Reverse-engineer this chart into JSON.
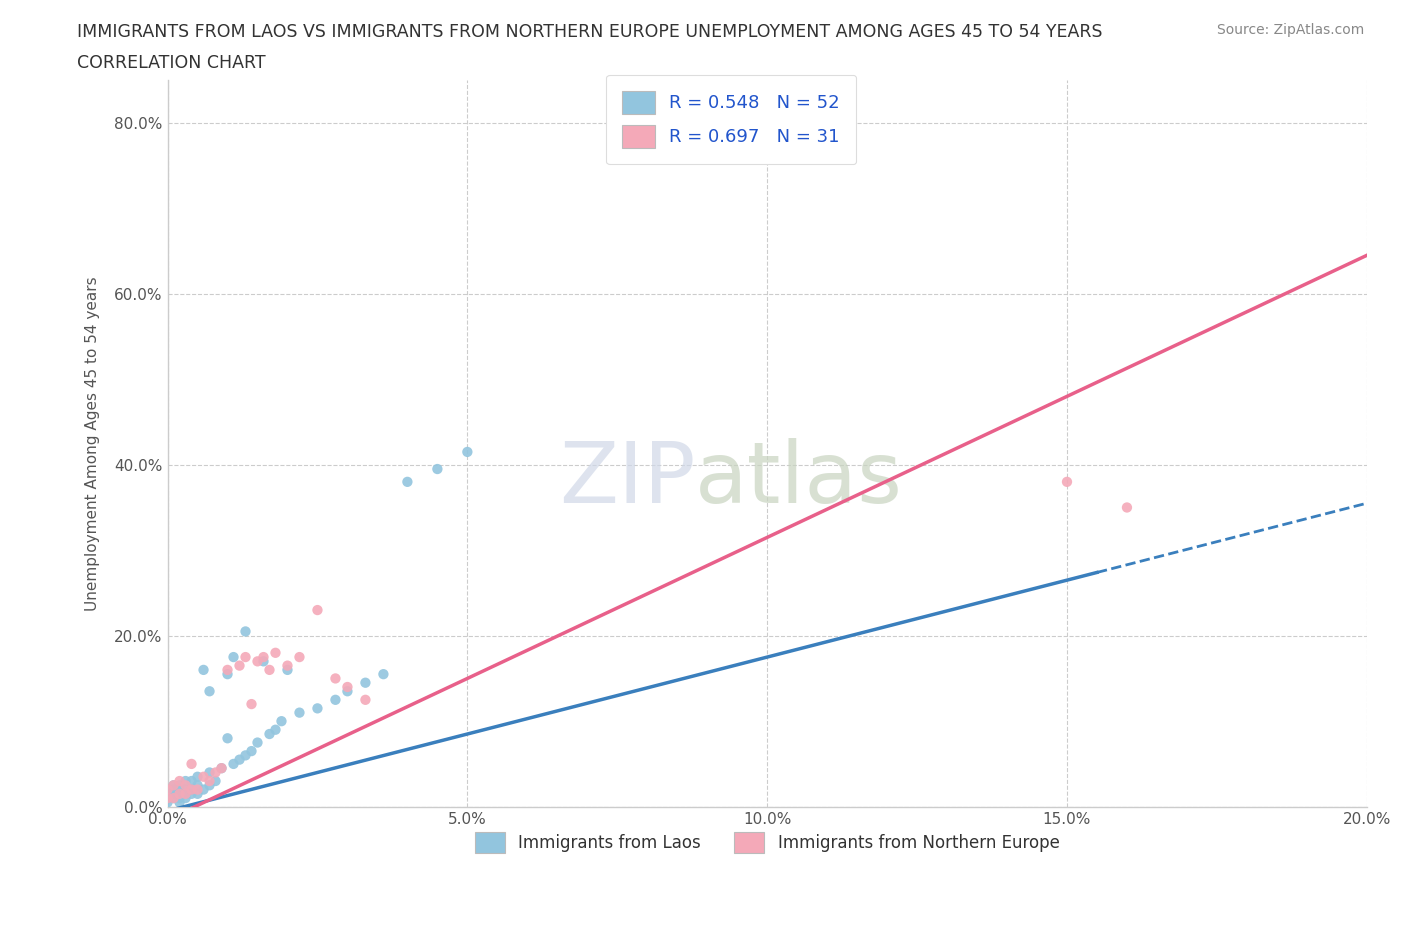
{
  "title_line1": "IMMIGRANTS FROM LAOS VS IMMIGRANTS FROM NORTHERN EUROPE UNEMPLOYMENT AMONG AGES 45 TO 54 YEARS",
  "title_line2": "CORRELATION CHART",
  "source_text": "Source: ZipAtlas.com",
  "ylabel": "Unemployment Among Ages 45 to 54 years",
  "legend_label1": "Immigrants from Laos",
  "legend_label2": "Immigrants from Northern Europe",
  "R1": 0.548,
  "N1": 52,
  "R2": 0.697,
  "N2": 31,
  "color1": "#92c5de",
  "color2": "#f4a9b8",
  "trendline1_color": "#3a7fbd",
  "trendline2_color": "#e8608a",
  "trendline1_dash_color": "#3a7fbd",
  "watermark": "ZIPatlas",
  "xlim": [
    0.0,
    0.2
  ],
  "ylim": [
    0.0,
    0.85
  ],
  "xticks": [
    0.0,
    0.05,
    0.1,
    0.15,
    0.2
  ],
  "yticks": [
    0.0,
    0.2,
    0.4,
    0.6,
    0.8
  ],
  "background_color": "#ffffff",
  "laos_x": [
    0.0,
    0.0,
    0.0,
    0.001,
    0.001,
    0.001,
    0.001,
    0.002,
    0.002,
    0.002,
    0.002,
    0.002,
    0.003,
    0.003,
    0.003,
    0.003,
    0.004,
    0.004,
    0.004,
    0.005,
    0.005,
    0.005,
    0.006,
    0.006,
    0.007,
    0.007,
    0.007,
    0.008,
    0.009,
    0.01,
    0.01,
    0.011,
    0.011,
    0.012,
    0.013,
    0.013,
    0.014,
    0.015,
    0.016,
    0.017,
    0.018,
    0.019,
    0.02,
    0.022,
    0.025,
    0.028,
    0.03,
    0.033,
    0.036,
    0.04,
    0.045,
    0.05
  ],
  "laos_y": [
    0.005,
    0.01,
    0.015,
    0.01,
    0.015,
    0.02,
    0.025,
    0.005,
    0.01,
    0.015,
    0.02,
    0.025,
    0.01,
    0.015,
    0.02,
    0.03,
    0.015,
    0.02,
    0.03,
    0.015,
    0.025,
    0.035,
    0.02,
    0.16,
    0.025,
    0.04,
    0.135,
    0.03,
    0.045,
    0.08,
    0.155,
    0.05,
    0.175,
    0.055,
    0.06,
    0.205,
    0.065,
    0.075,
    0.17,
    0.085,
    0.09,
    0.1,
    0.16,
    0.11,
    0.115,
    0.125,
    0.135,
    0.145,
    0.155,
    0.38,
    0.395,
    0.415
  ],
  "northern_europe_x": [
    0.0,
    0.0,
    0.001,
    0.001,
    0.002,
    0.002,
    0.003,
    0.003,
    0.004,
    0.004,
    0.005,
    0.006,
    0.007,
    0.008,
    0.009,
    0.01,
    0.012,
    0.013,
    0.014,
    0.015,
    0.016,
    0.017,
    0.018,
    0.02,
    0.022,
    0.025,
    0.028,
    0.03,
    0.033,
    0.15,
    0.16
  ],
  "northern_europe_y": [
    0.01,
    0.02,
    0.01,
    0.025,
    0.015,
    0.03,
    0.015,
    0.025,
    0.02,
    0.05,
    0.02,
    0.035,
    0.03,
    0.04,
    0.045,
    0.16,
    0.165,
    0.175,
    0.12,
    0.17,
    0.175,
    0.16,
    0.18,
    0.165,
    0.175,
    0.23,
    0.15,
    0.14,
    0.125,
    0.38,
    0.35
  ],
  "trendline1_intercept": -0.005,
  "trendline1_slope": 1.8,
  "trendline2_intercept": -0.015,
  "trendline2_slope": 3.3,
  "trendline1_solid_end": 0.155,
  "trendline1_dash_end": 0.2
}
